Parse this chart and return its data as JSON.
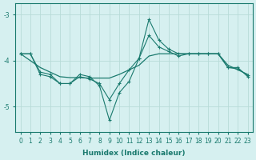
{
  "xlabel": "Humidex (Indice chaleur)",
  "background_color": "#d6f0f0",
  "line_color": "#1a7a6e",
  "grid_color": "#b8dbd8",
  "xlim": [
    -0.5,
    23.5
  ],
  "ylim": [
    -5.55,
    -2.75
  ],
  "yticks": [
    -5,
    -4,
    -3
  ],
  "xticks": [
    0,
    1,
    2,
    3,
    4,
    5,
    6,
    7,
    8,
    9,
    10,
    11,
    12,
    13,
    14,
    15,
    16,
    17,
    18,
    19,
    20,
    21,
    22,
    23
  ],
  "series1_x": [
    0,
    1,
    2,
    3,
    4,
    5,
    6,
    7,
    8,
    9,
    10,
    11,
    12,
    13,
    14,
    15,
    16,
    17,
    18,
    19,
    20,
    21,
    22,
    23
  ],
  "series1_y": [
    -3.85,
    -3.85,
    -4.3,
    -4.35,
    -4.5,
    -4.5,
    -4.35,
    -4.4,
    -4.5,
    -4.85,
    -4.5,
    -4.2,
    -3.95,
    -3.45,
    -3.7,
    -3.8,
    -3.9,
    -3.85,
    -3.85,
    -3.85,
    -3.85,
    -4.15,
    -4.18,
    -4.32
  ],
  "series2_x": [
    0,
    1,
    2,
    3,
    4,
    5,
    6,
    7,
    8,
    9,
    10,
    11,
    12,
    13,
    14,
    15,
    16,
    17,
    18,
    19,
    20,
    21,
    22,
    23
  ],
  "series2_y": [
    -3.85,
    -3.85,
    -4.25,
    -4.3,
    -4.5,
    -4.5,
    -4.3,
    -4.35,
    -4.55,
    -5.3,
    -4.7,
    -4.45,
    -3.95,
    -3.1,
    -3.55,
    -3.75,
    -3.85,
    -3.85,
    -3.85,
    -3.85,
    -3.85,
    -4.15,
    -4.15,
    -4.35
  ],
  "series3_x": [
    0,
    1,
    2,
    3,
    4,
    5,
    6,
    7,
    8,
    9,
    10,
    11,
    12,
    13,
    14,
    15,
    16,
    17,
    18,
    19,
    20,
    21,
    22,
    23
  ],
  "series3_y": [
    -3.85,
    -4.0,
    -4.15,
    -4.25,
    -4.35,
    -4.37,
    -4.37,
    -4.38,
    -4.38,
    -4.38,
    -4.3,
    -4.2,
    -4.1,
    -3.9,
    -3.85,
    -3.85,
    -3.85,
    -3.85,
    -3.85,
    -3.85,
    -3.85,
    -4.1,
    -4.2,
    -4.3
  ]
}
